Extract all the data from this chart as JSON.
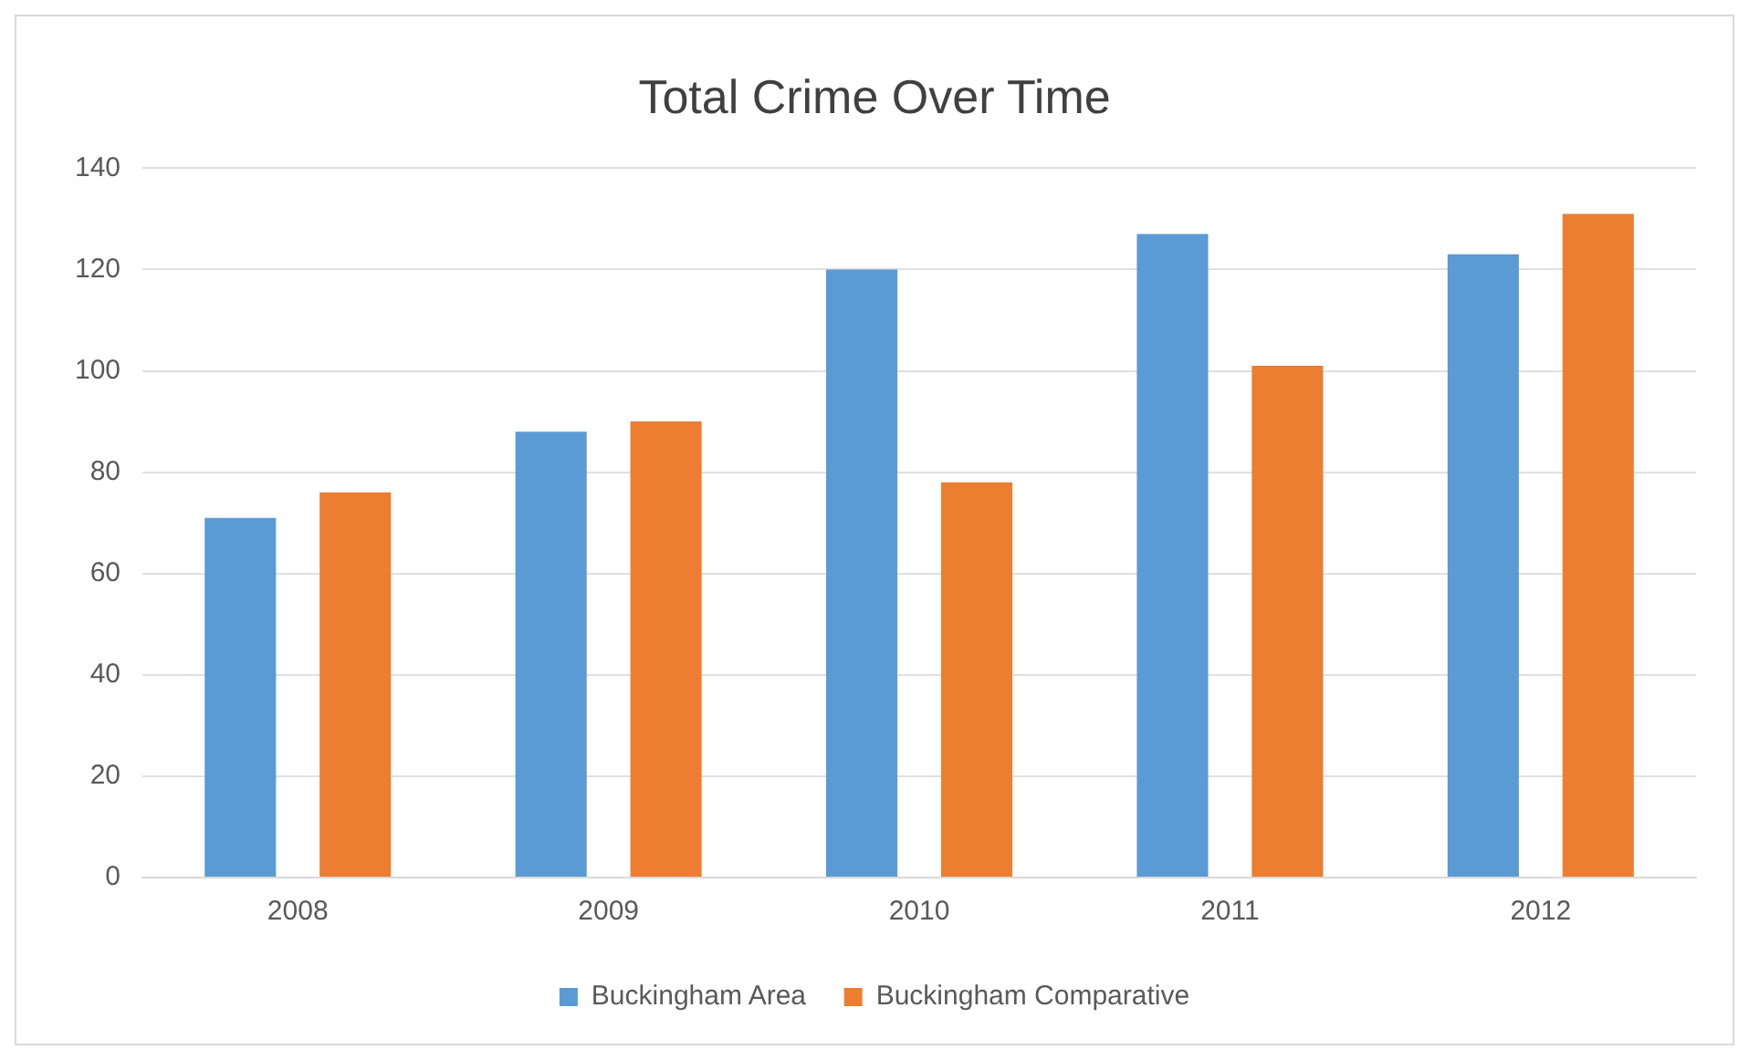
{
  "chart_data": {
    "type": "bar",
    "title": "Total Crime Over Time",
    "categories": [
      "2008",
      "2009",
      "2010",
      "2011",
      "2012"
    ],
    "series": [
      {
        "name": "Buckingham Area",
        "color": "#5b9bd5",
        "values": [
          71,
          88,
          120,
          127,
          123
        ]
      },
      {
        "name": "Buckingham Comparative",
        "color": "#ed7d31",
        "values": [
          76,
          90,
          78,
          101,
          131
        ]
      }
    ],
    "ylim": [
      0,
      140
    ],
    "yticks": [
      0,
      20,
      40,
      60,
      80,
      100,
      120,
      140
    ],
    "grid": "y",
    "legend": "bottom"
  }
}
